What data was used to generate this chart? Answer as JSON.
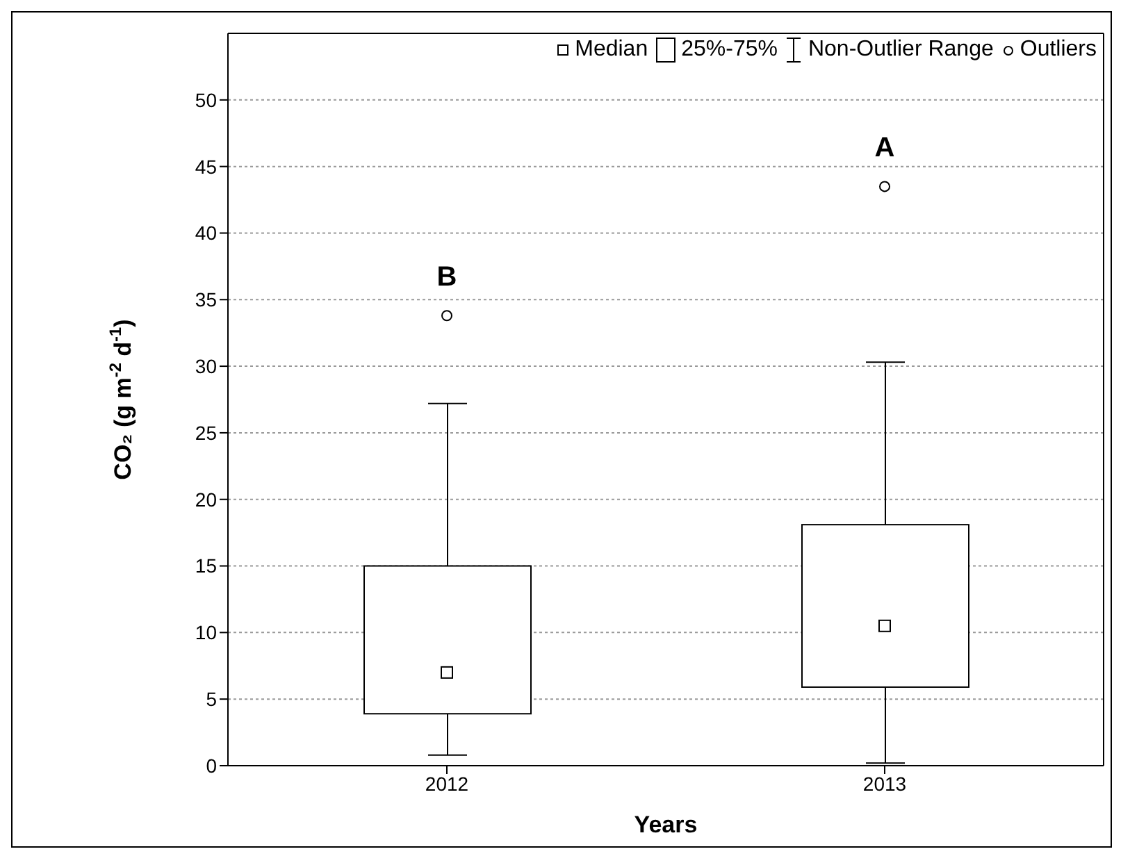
{
  "chart_data": {
    "type": "box",
    "xlabel": "Years",
    "ylabel": "CO₂ (g m$^{-2}$ d$^{-1}$)",
    "categories": [
      "2012",
      "2013"
    ],
    "boxes": [
      {
        "low": 0.8,
        "q1": 3.9,
        "median": 7,
        "q3": 15,
        "high": 27.2,
        "outliers": [
          33.8
        ]
      },
      {
        "low": 0.2,
        "q1": 5.9,
        "median": 10.5,
        "q3": 18.1,
        "high": 30.3,
        "outliers": [
          43.5
        ]
      }
    ],
    "ylim": [
      0,
      55
    ],
    "yticks": [
      0,
      5,
      10,
      15,
      20,
      25,
      30,
      35,
      40,
      45,
      50
    ],
    "grid": "y",
    "annotations": [
      "Median",
      "25%-75%",
      "Non-Outlier Range",
      "Outliers",
      "B",
      "A"
    ]
  }
}
